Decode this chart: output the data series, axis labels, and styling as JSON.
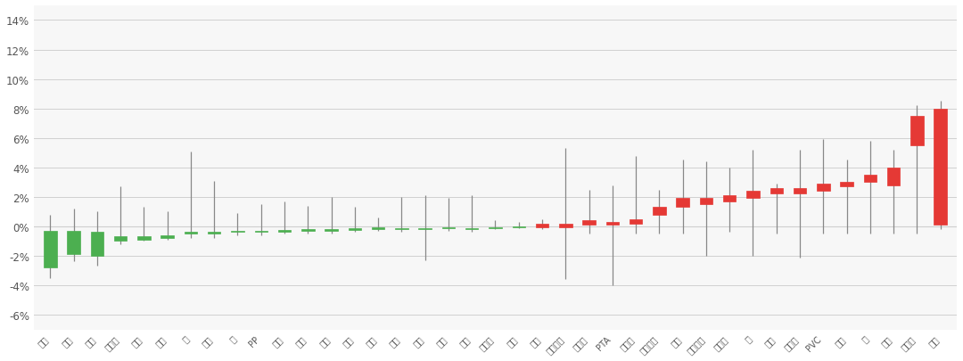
{
  "categories": [
    "原油",
    "甲醇",
    "黄金",
    "棕榈油",
    "塑料",
    "花生",
    "铜",
    "苹果",
    "铝",
    "PP",
    "豆粕",
    "白糖",
    "菜油",
    "豆一",
    "豆二",
    "菜粕",
    "玉米",
    "棉纱",
    "豆油",
    "郑烧碱",
    "烧碱",
    "硅铁",
    "对二甲苯",
    "乙二醇",
    "PTA",
    "苯乙烯",
    "合成橡胶",
    "棉花",
    "锰硅矿石",
    "铁矿石",
    "镍",
    "尿素",
    "液化气",
    "PVC",
    "白银",
    "锌",
    "纯碱",
    "工业硅",
    "锰硅"
  ],
  "open": [
    -0.3,
    -0.3,
    -0.4,
    -0.7,
    -0.7,
    -0.6,
    -0.4,
    -0.4,
    -0.3,
    -0.3,
    -0.25,
    -0.2,
    -0.2,
    -0.15,
    -0.1,
    -0.15,
    -0.15,
    -0.1,
    -0.15,
    -0.1,
    -0.05,
    -0.1,
    -0.1,
    0.1,
    0.1,
    0.2,
    0.8,
    1.3,
    1.5,
    1.7,
    1.9,
    2.2,
    2.2,
    2.4,
    2.7,
    3.0,
    2.8,
    5.5,
    0.1
  ],
  "close": [
    -2.8,
    -1.9,
    -2.0,
    -1.0,
    -0.9,
    -0.8,
    -0.5,
    -0.5,
    -0.4,
    -0.4,
    -0.35,
    -0.3,
    -0.3,
    -0.25,
    -0.2,
    -0.2,
    -0.2,
    -0.15,
    -0.2,
    -0.15,
    -0.1,
    0.2,
    0.2,
    0.4,
    0.3,
    0.5,
    1.3,
    1.9,
    1.9,
    2.1,
    2.4,
    2.6,
    2.6,
    2.9,
    3.0,
    3.5,
    4.0,
    7.5,
    8.0
  ],
  "high": [
    0.8,
    1.2,
    1.0,
    2.7,
    1.3,
    1.0,
    5.1,
    3.1,
    0.9,
    1.5,
    1.7,
    1.4,
    2.0,
    1.3,
    0.6,
    2.0,
    2.1,
    1.9,
    2.1,
    0.4,
    0.3,
    0.5,
    5.3,
    2.5,
    2.8,
    4.8,
    2.5,
    4.5,
    4.4,
    4.0,
    5.2,
    2.9,
    5.2,
    5.9,
    4.5,
    5.8,
    5.2,
    8.2,
    8.5
  ],
  "low": [
    -3.5,
    -2.4,
    -2.7,
    -1.2,
    -1.0,
    -0.9,
    -0.8,
    -0.8,
    -0.6,
    -0.6,
    -0.5,
    -0.5,
    -0.5,
    -0.4,
    -0.3,
    -0.35,
    -2.3,
    -0.3,
    -0.4,
    -0.2,
    -0.15,
    -0.2,
    -3.6,
    -0.5,
    -4.0,
    -0.5,
    -0.5,
    -0.5,
    -2.0,
    -0.4,
    -2.0,
    -0.5,
    -2.1,
    -0.5,
    -0.5,
    -0.5,
    -0.5,
    -0.5,
    -0.2
  ],
  "colors": [
    "#4caf50",
    "#4caf50",
    "#4caf50",
    "#4caf50",
    "#4caf50",
    "#4caf50",
    "#4caf50",
    "#4caf50",
    "#4caf50",
    "#4caf50",
    "#4caf50",
    "#4caf50",
    "#4caf50",
    "#4caf50",
    "#4caf50",
    "#4caf50",
    "#4caf50",
    "#4caf50",
    "#4caf50",
    "#4caf50",
    "#4caf50",
    "#e53935",
    "#e53935",
    "#e53935",
    "#e53935",
    "#e53935",
    "#e53935",
    "#e53935",
    "#e53935",
    "#e53935",
    "#e53935",
    "#e53935",
    "#e53935",
    "#e53935",
    "#e53935",
    "#e53935",
    "#e53935",
    "#e53935",
    "#e53935"
  ],
  "ylim": [
    -7,
    15
  ],
  "yticks": [
    -6,
    -4,
    -2,
    0,
    2,
    4,
    6,
    8,
    10,
    12,
    14
  ],
  "background_color": "#ffffff",
  "plot_bg_color": "#f7f7f7",
  "grid_color": "#d0d0d0",
  "bar_width": 0.55,
  "whisker_color": "#888888",
  "whisker_lw": 0.9
}
